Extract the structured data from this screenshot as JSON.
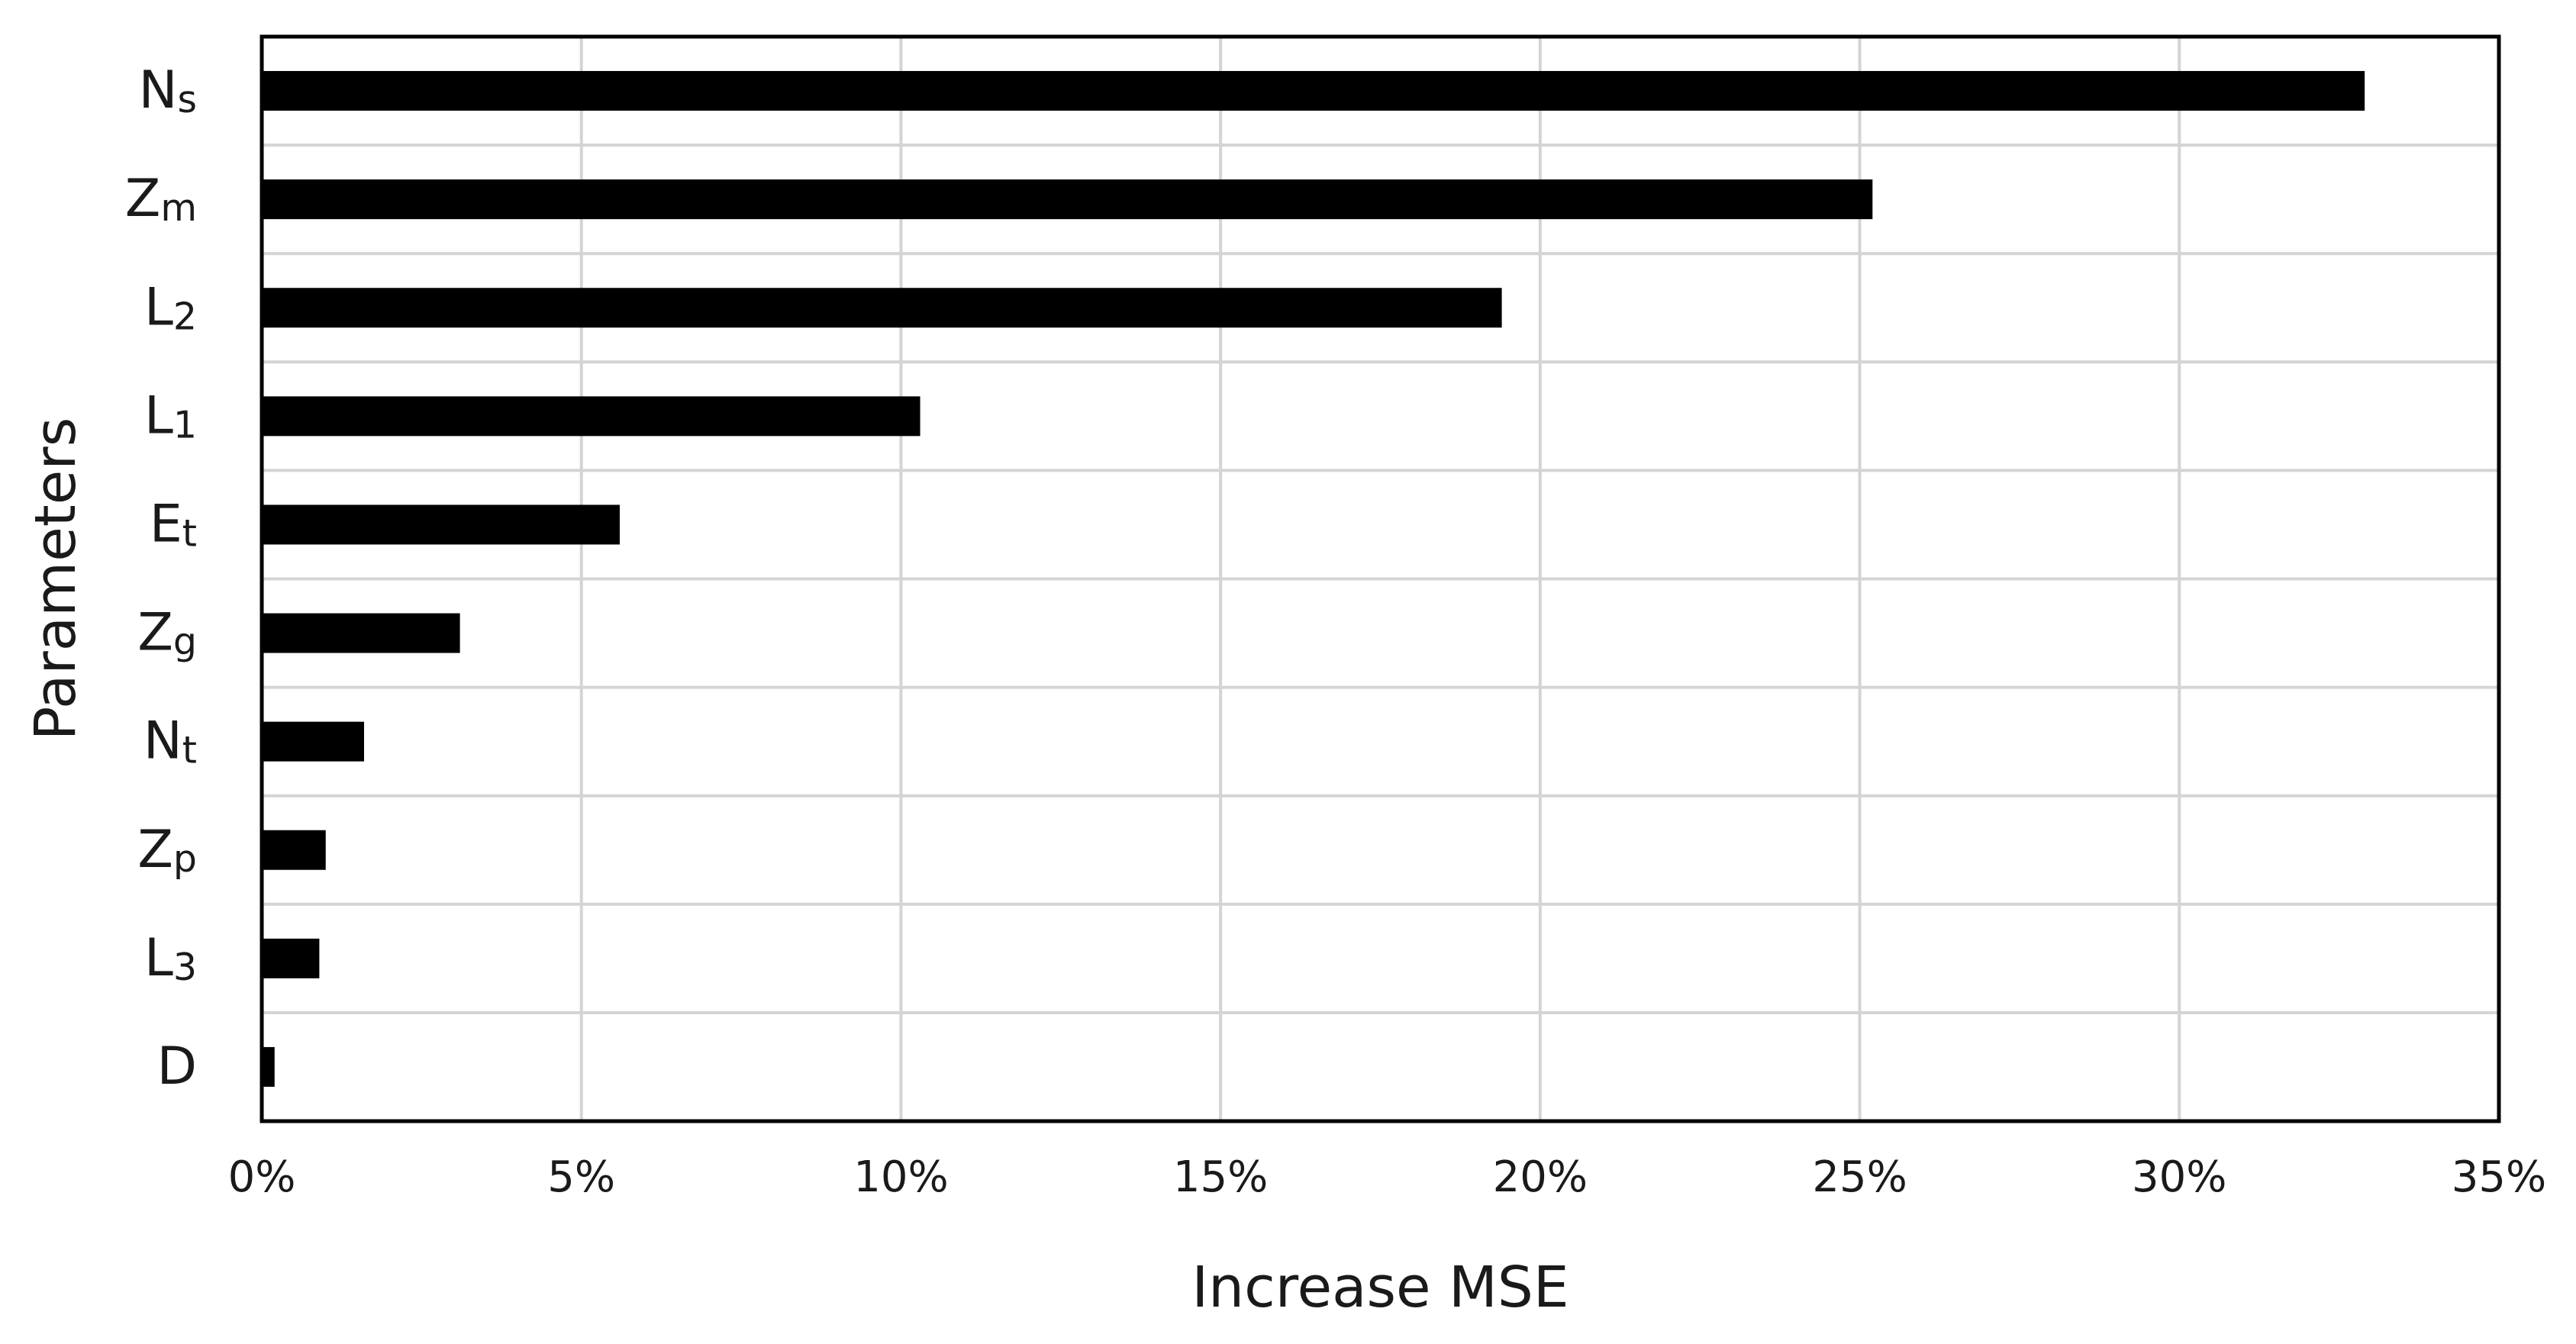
{
  "chart_data": {
    "type": "bar",
    "orientation": "horizontal",
    "xlabel": "Increase MSE",
    "ylabel": "Parameters",
    "xlim": [
      0,
      35
    ],
    "x_ticks": [
      "0%",
      "5%",
      "10%",
      "15%",
      "20%",
      "25%",
      "30%",
      "35%"
    ],
    "grid": true,
    "categories": [
      {
        "main": "N",
        "sub": "s"
      },
      {
        "main": "Z",
        "sub": "m"
      },
      {
        "main": "L",
        "sub": "2"
      },
      {
        "main": "L",
        "sub": "1"
      },
      {
        "main": "E",
        "sub": "t"
      },
      {
        "main": "Z",
        "sub": "g"
      },
      {
        "main": "N",
        "sub": "t"
      },
      {
        "main": "Z",
        "sub": "p"
      },
      {
        "main": "L",
        "sub": "3"
      },
      {
        "main": "D",
        "sub": ""
      }
    ],
    "values": [
      32.9,
      25.2,
      19.4,
      10.3,
      5.6,
      3.1,
      1.6,
      1.0,
      0.9,
      0.2
    ],
    "bar_color": "#000000",
    "grid_color": "#d4d4d4",
    "frame_color": "#000000"
  }
}
